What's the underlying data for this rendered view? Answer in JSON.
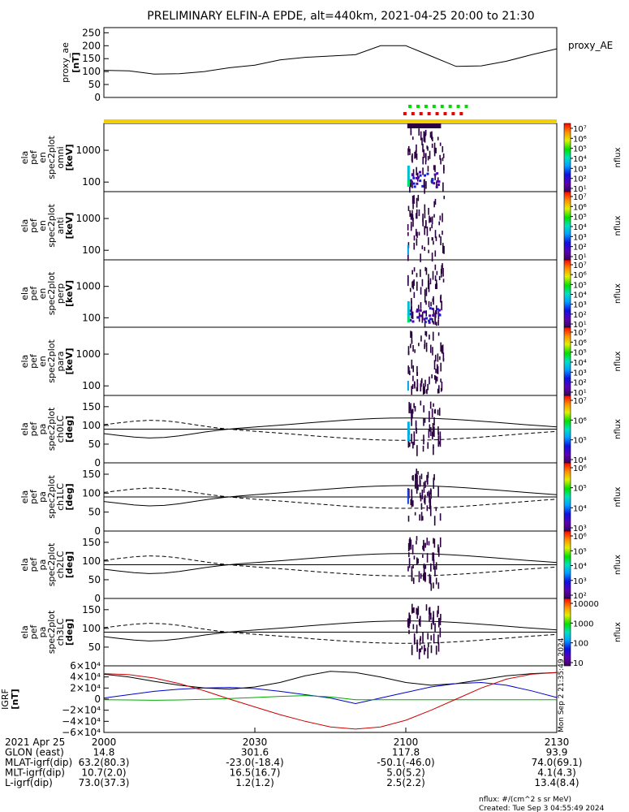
{
  "title": "PRELIMINARY ELFIN-A EPDE, alt=440km, 2021-04-25 20:00 to 21:30",
  "chart_data": [
    {
      "type": "line",
      "name": "proxy_ae",
      "ylabel_lines": [
        "proxy_ae",
        "[nT]"
      ],
      "legend_label": "proxy_AE",
      "ylim": [
        0,
        270
      ],
      "yticks": [
        "250",
        "200",
        "150",
        "100",
        "50",
        "0"
      ],
      "ytick_values": [
        250,
        200,
        150,
        100,
        50,
        0
      ],
      "x_minutes": [
        0,
        5,
        10,
        15,
        20,
        25,
        30,
        35,
        40,
        45,
        50,
        55,
        60,
        65,
        70,
        75,
        80,
        85,
        90
      ],
      "values": [
        105,
        103,
        90,
        92,
        100,
        115,
        125,
        145,
        155,
        160,
        165,
        200,
        200,
        160,
        120,
        122,
        140,
        165,
        188
      ]
    },
    {
      "type": "heatmap",
      "name": "omni",
      "ylabel_lines": [
        "ela",
        "pef",
        "en",
        "spec2plot",
        "omni",
        "[keV]"
      ],
      "yticks": [
        "1000",
        "100"
      ],
      "ytick_values": [
        1000,
        100
      ],
      "cbar_ticks": [
        "10⁷",
        "10⁶",
        "10⁵",
        "10⁴",
        "10³",
        "10²",
        "10¹"
      ],
      "cbar_label": "nflux"
    },
    {
      "type": "heatmap",
      "name": "anti",
      "ylabel_lines": [
        "ela",
        "pef",
        "en",
        "spec2plot",
        "anti",
        "[keV]"
      ],
      "yticks": [
        "1000",
        "100"
      ],
      "ytick_values": [
        1000,
        100
      ],
      "cbar_ticks": [
        "10⁷",
        "10⁶",
        "10⁵",
        "10⁴",
        "10³",
        "10²",
        "10¹"
      ],
      "cbar_label": "nflux"
    },
    {
      "type": "heatmap",
      "name": "perp",
      "ylabel_lines": [
        "ela",
        "pef",
        "en",
        "spec2plot",
        "perp",
        "[keV]"
      ],
      "yticks": [
        "1000",
        "100"
      ],
      "ytick_values": [
        1000,
        100
      ],
      "cbar_ticks": [
        "10⁷",
        "10⁶",
        "10⁵",
        "10⁴",
        "10³",
        "10²",
        "10¹"
      ],
      "cbar_label": "nflux"
    },
    {
      "type": "heatmap",
      "name": "para",
      "ylabel_lines": [
        "ela",
        "pef",
        "en",
        "spec2plot",
        "para",
        "[keV]"
      ],
      "yticks": [
        "1000",
        "100"
      ],
      "ytick_values": [
        1000,
        100
      ],
      "cbar_ticks": [
        "10⁷",
        "10⁶",
        "10⁵",
        "10⁴",
        "10³",
        "10²",
        "10¹"
      ],
      "cbar_label": "nflux"
    },
    {
      "type": "heatmap",
      "name": "ch0LC",
      "ylabel_lines": [
        "ela",
        "pef",
        "pa",
        "spec2plot",
        "ch0LC",
        "[deg]"
      ],
      "yticks": [
        "150",
        "100",
        "50",
        "0"
      ],
      "ytick_values": [
        150,
        100,
        50,
        0
      ],
      "cbar_ticks": [
        "10⁷",
        "10⁶",
        "10⁵",
        "10⁴"
      ],
      "cbar_label": "nflux"
    },
    {
      "type": "heatmap",
      "name": "ch1LC",
      "ylabel_lines": [
        "ela",
        "pef",
        "pa",
        "spec2plot",
        "ch1LC",
        "[deg]"
      ],
      "yticks": [
        "150",
        "100",
        "50",
        "0"
      ],
      "ytick_values": [
        150,
        100,
        50,
        0
      ],
      "cbar_ticks": [
        "10⁶",
        "10⁵",
        "10⁴",
        "10³"
      ],
      "cbar_label": "nflux"
    },
    {
      "type": "heatmap",
      "name": "ch2LC",
      "ylabel_lines": [
        "ela",
        "pef",
        "pa",
        "spec2plot",
        "ch2LC",
        "[deg]"
      ],
      "yticks": [
        "150",
        "100",
        "50",
        "0"
      ],
      "ytick_values": [
        150,
        100,
        50,
        0
      ],
      "cbar_ticks": [
        "10⁶",
        "10⁵",
        "10⁴",
        "10³",
        "10²"
      ],
      "cbar_label": "nflux"
    },
    {
      "type": "heatmap",
      "name": "ch3LC",
      "ylabel_lines": [
        "ela",
        "pef",
        "pa",
        "spec2plot",
        "ch3LC",
        "[deg]"
      ],
      "yticks": [
        "150",
        "100",
        "50"
      ],
      "ytick_values": [
        150,
        100,
        50
      ],
      "cbar_ticks": [
        "10000",
        "1000",
        "100",
        "10"
      ],
      "cbar_label": "nflux"
    },
    {
      "type": "line",
      "name": "IGRF",
      "ylabel_lines": [
        "IGRF",
        "[nT]"
      ],
      "ylim": [
        -60000,
        60000
      ],
      "yticks": [
        "6×10⁴",
        "4×10⁴",
        "2×10⁴",
        "0",
        "−2×10⁴",
        "−4×10⁴",
        "−6×10⁴"
      ],
      "ytick_values": [
        60000,
        40000,
        20000,
        0,
        -20000,
        -40000,
        -60000
      ],
      "x_minutes": [
        0,
        5,
        10,
        15,
        20,
        25,
        30,
        35,
        40,
        45,
        50,
        55,
        60,
        65,
        70,
        75,
        80,
        85,
        90
      ],
      "series": [
        {
          "color": "#000000",
          "values": [
            45000,
            40000,
            32000,
            25000,
            20000,
            18000,
            22000,
            30000,
            42000,
            50000,
            48000,
            40000,
            30000,
            25000,
            28000,
            35000,
            42000,
            46000,
            48000
          ]
        },
        {
          "color": "#0000cc",
          "values": [
            2000,
            8000,
            14000,
            18000,
            20000,
            21000,
            19000,
            14000,
            8000,
            2000,
            -8000,
            2000,
            12000,
            22000,
            28000,
            30000,
            25000,
            15000,
            3000
          ]
        },
        {
          "color": "#00aa00",
          "values": [
            -1000,
            -1500,
            -2000,
            -1500,
            -500,
            1000,
            3000,
            5000,
            6500,
            4000,
            -1000,
            -1000,
            -1000,
            -1000,
            -1000,
            -1000,
            -1000,
            -1000,
            -1000
          ]
        },
        {
          "color": "#cc0000",
          "values": [
            46000,
            44000,
            38000,
            28000,
            15000,
            0,
            -14000,
            -28000,
            -40000,
            -50000,
            -54000,
            -50000,
            -38000,
            -20000,
            0,
            20000,
            36000,
            45000,
            48000
          ]
        }
      ]
    }
  ],
  "xaxis": {
    "row_labels": [
      "2021 Apr 25",
      "GLON (east)",
      "MLAT-igrf(dip)",
      "MLT-igrf(dip)",
      "L-igrf(dip)"
    ],
    "columns": [
      {
        "minute": 0,
        "values": [
          "2000",
          "14.8",
          "63.2(80.3)",
          "10.7(2.0)",
          "73.0(37.3)"
        ]
      },
      {
        "minute": 30,
        "values": [
          "2030",
          "301.6",
          "-23.0(-18.4)",
          "16.5(16.7)",
          "1.2(1.2)"
        ]
      },
      {
        "minute": 60,
        "values": [
          "2100",
          "117.8",
          "-50.1(-46.0)",
          "5.0(5.2)",
          "2.5(2.2)"
        ]
      },
      {
        "minute": 90,
        "values": [
          "2130",
          "93.9",
          "74.0(69.1)",
          "4.1(4.3)",
          "13.4(8.4)"
        ]
      }
    ]
  },
  "side_timestamp": "Mon Sep  2 21:35:49 2024",
  "footer": {
    "units": "nflux: #/(cm^2 s sr MeV)",
    "created": "Created: Tue Sep  3 04:55:49 2024"
  }
}
